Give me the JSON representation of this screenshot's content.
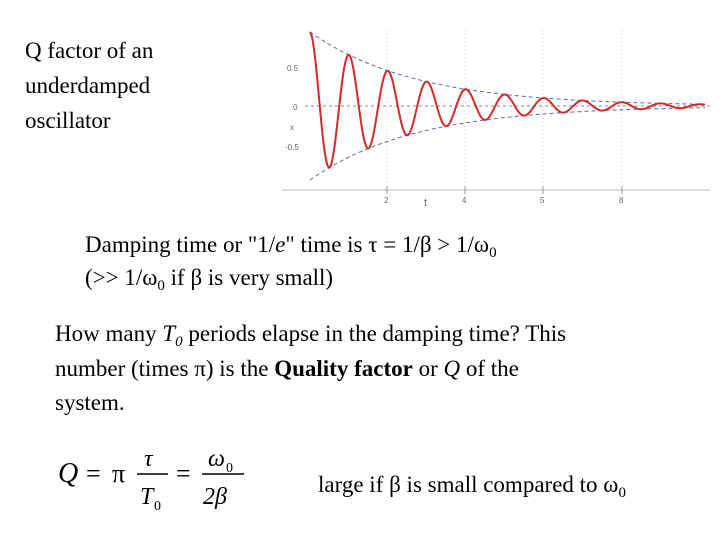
{
  "title": [
    "Q factor of an",
    "underdamped",
    "oscillator"
  ],
  "figure": {
    "y_ticks": [
      "0.5",
      "0",
      "-0.5"
    ],
    "y_label": "x",
    "x_label": "t",
    "x_ticks": [
      "2",
      "4",
      "5",
      "8"
    ]
  },
  "definition": {
    "line1": [
      "Damping time or \"1/",
      "e",
      "\" time is τ = 1/β > 1/ω",
      "0"
    ],
    "line2": [
      "(>> 1/ω",
      "0",
      " if β is very small)"
    ]
  },
  "question": {
    "line1": [
      "How many ",
      "T",
      "0",
      " periods elapse in the damping time? This"
    ],
    "line2": [
      "number (times π) is the ",
      "Quality factor",
      " or ",
      "Q",
      " of the"
    ],
    "line3": [
      "system."
    ]
  },
  "formula": [
    "Q",
    "=",
    "π",
    "τ",
    "T",
    "0",
    "=",
    "ω",
    "0",
    "2β"
  ],
  "note": [
    "large if β is small compared to ω",
    "0"
  ]
}
